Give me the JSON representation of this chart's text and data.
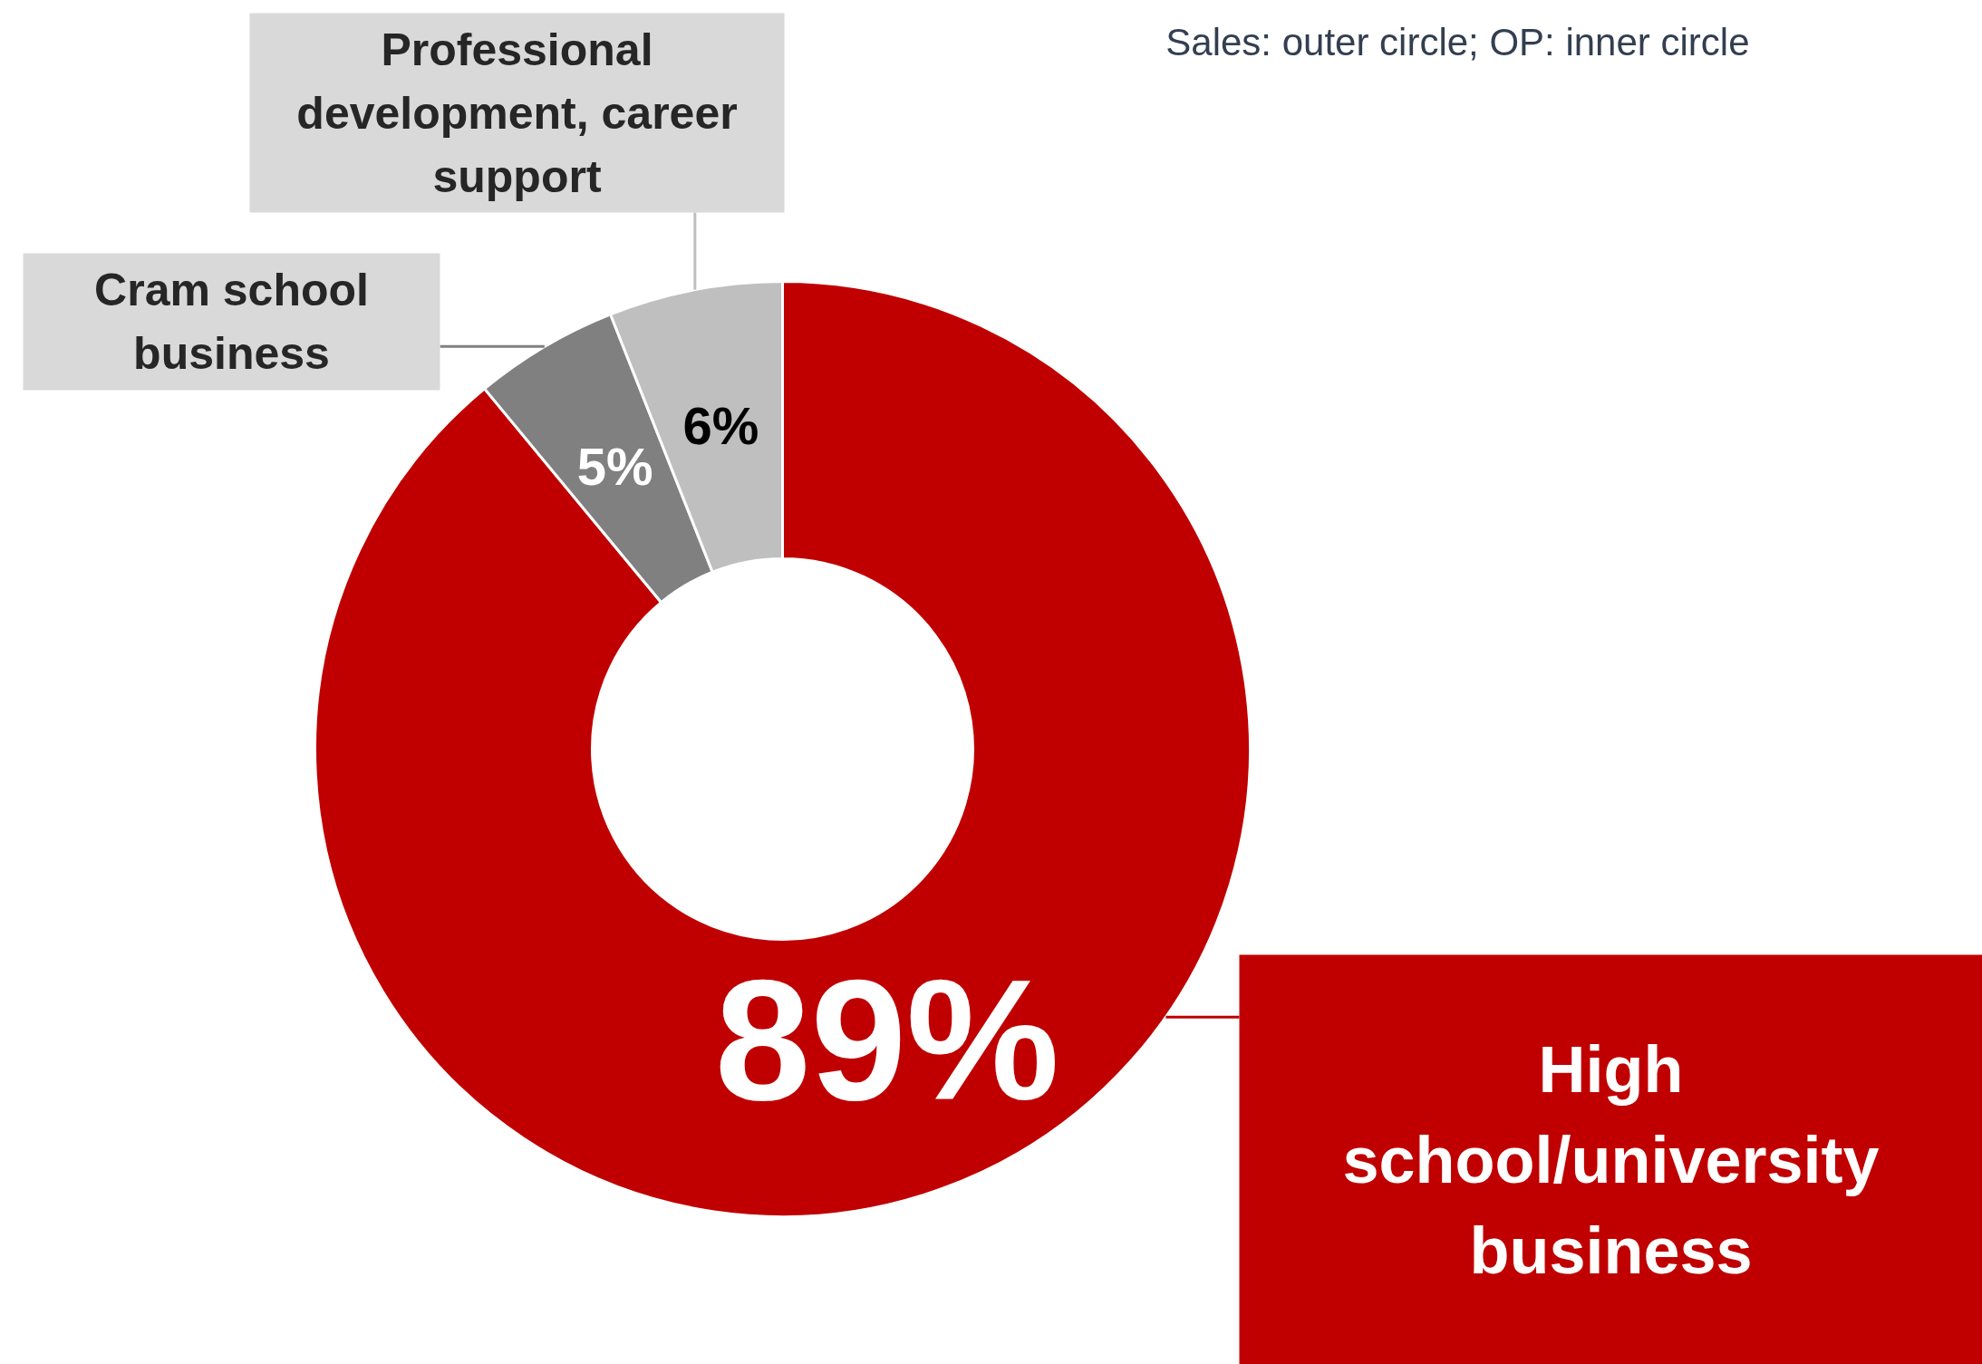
{
  "chart_data": {
    "type": "donut",
    "categories": [
      "High school/university business",
      "Cram school business",
      "Professional development, career support"
    ],
    "values": [
      89,
      5,
      6
    ],
    "colors": [
      "#c00000",
      "#808080",
      "#bfbfbf"
    ],
    "value_labels": [
      "89%",
      "5%",
      "6%"
    ],
    "annotations": [
      "Sales: outer circle; OP: inner circle"
    ]
  }
}
